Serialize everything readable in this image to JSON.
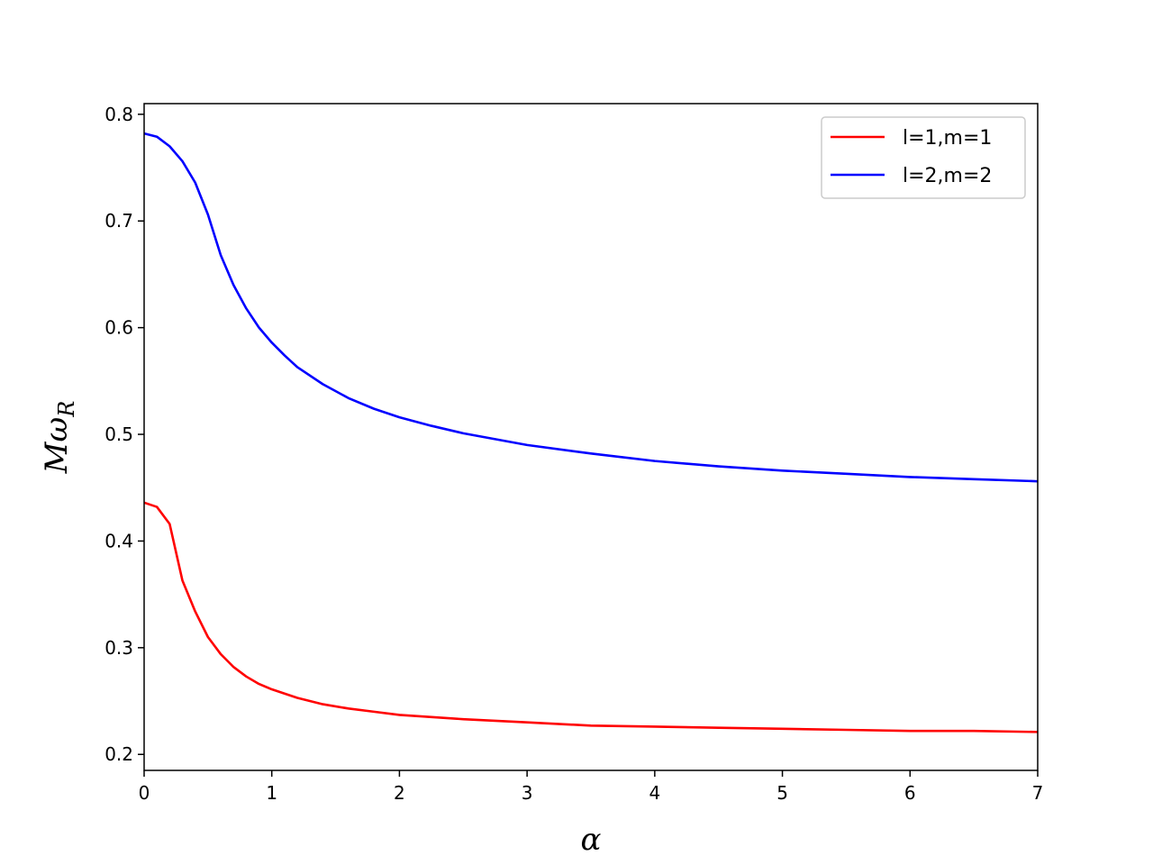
{
  "chart_data": {
    "type": "line",
    "title": "",
    "xlabel": "α",
    "ylabel_main": "Mω",
    "ylabel_sub": "R",
    "xlim": [
      0,
      7
    ],
    "ylim": [
      0.185,
      0.81
    ],
    "xticks": [
      0,
      1,
      2,
      3,
      4,
      5,
      6,
      7
    ],
    "xtick_labels": [
      "0",
      "1",
      "2",
      "3",
      "4",
      "5",
      "6",
      "7"
    ],
    "yticks": [
      0.2,
      0.3,
      0.4,
      0.5,
      0.6,
      0.7,
      0.8
    ],
    "ytick_labels": [
      "0.2",
      "0.3",
      "0.4",
      "0.5",
      "0.6",
      "0.7",
      "0.8"
    ],
    "grid": false,
    "legend_position": "top-right",
    "series": [
      {
        "name": "l=1,m=1",
        "color": "#ff0000",
        "points": [
          [
            0,
            0.436
          ],
          [
            0.1,
            0.432
          ],
          [
            0.2,
            0.416
          ],
          [
            0.3,
            0.363
          ],
          [
            0.4,
            0.334
          ],
          [
            0.5,
            0.31
          ],
          [
            0.6,
            0.294
          ],
          [
            0.7,
            0.282
          ],
          [
            0.8,
            0.273
          ],
          [
            0.9,
            0.266
          ],
          [
            1.0,
            0.261
          ],
          [
            1.2,
            0.253
          ],
          [
            1.4,
            0.247
          ],
          [
            1.6,
            0.243
          ],
          [
            1.8,
            0.24
          ],
          [
            2.0,
            0.237
          ],
          [
            2.5,
            0.233
          ],
          [
            3.0,
            0.23
          ],
          [
            3.5,
            0.227
          ],
          [
            4.0,
            0.226
          ],
          [
            4.5,
            0.225
          ],
          [
            5.0,
            0.224
          ],
          [
            5.5,
            0.223
          ],
          [
            6.0,
            0.222
          ],
          [
            6.5,
            0.222
          ],
          [
            7.0,
            0.221
          ]
        ]
      },
      {
        "name": "l=2,m=2",
        "color": "#0000ff",
        "points": [
          [
            0,
            0.782
          ],
          [
            0.1,
            0.779
          ],
          [
            0.2,
            0.77
          ],
          [
            0.3,
            0.756
          ],
          [
            0.4,
            0.736
          ],
          [
            0.5,
            0.706
          ],
          [
            0.6,
            0.668
          ],
          [
            0.7,
            0.64
          ],
          [
            0.8,
            0.618
          ],
          [
            0.9,
            0.6
          ],
          [
            1.0,
            0.586
          ],
          [
            1.1,
            0.574
          ],
          [
            1.2,
            0.563
          ],
          [
            1.4,
            0.547
          ],
          [
            1.6,
            0.534
          ],
          [
            1.8,
            0.524
          ],
          [
            2.0,
            0.516
          ],
          [
            2.25,
            0.508
          ],
          [
            2.5,
            0.501
          ],
          [
            3.0,
            0.49
          ],
          [
            3.5,
            0.482
          ],
          [
            4.0,
            0.475
          ],
          [
            4.5,
            0.47
          ],
          [
            5.0,
            0.466
          ],
          [
            5.5,
            0.463
          ],
          [
            6.0,
            0.46
          ],
          [
            6.5,
            0.458
          ],
          [
            7.0,
            0.456
          ]
        ]
      }
    ]
  }
}
